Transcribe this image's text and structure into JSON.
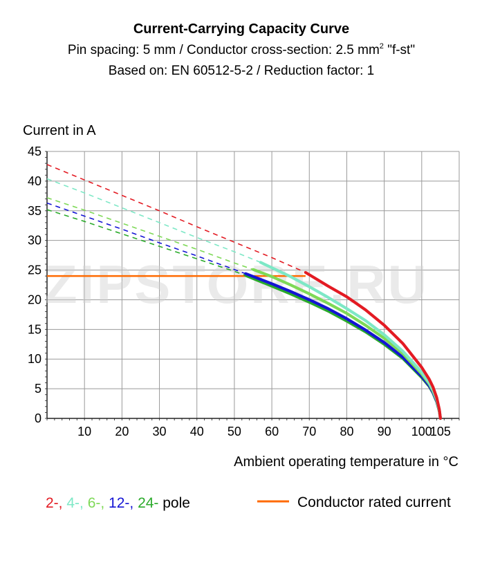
{
  "chart_data": {
    "type": "line",
    "title": "Current-Carrying Capacity Curve",
    "subtitle_lines": [
      "Pin spacing: 5 mm / Conductor cross-section: 2.5 mm",
      "Based on: EN 60512-5-2 / Reduction factor: 1"
    ],
    "subtitle_superscript": "2",
    "subtitle_suffix": " \"f-st\"",
    "ylabel": "Current in A",
    "xlabel": "Ambient operating temperature in °C",
    "xlim": [
      0,
      110
    ],
    "ylim": [
      0,
      45
    ],
    "x_ticks": [
      10,
      20,
      30,
      40,
      50,
      60,
      70,
      80,
      90,
      100,
      105
    ],
    "x_tick_labels": [
      "10",
      "20",
      "30",
      "40",
      "50",
      "60",
      "70",
      "80",
      "90",
      "100",
      "105"
    ],
    "y_ticks": [
      0,
      5,
      10,
      15,
      20,
      25,
      30,
      35,
      40,
      45
    ],
    "y_tick_labels": [
      "0",
      "5",
      "10",
      "15",
      "20",
      "25",
      "30",
      "35",
      "40",
      "45"
    ],
    "series": [
      {
        "name": "2-",
        "color": "#e31b23",
        "dashed": [
          [
            0,
            42.8
          ],
          [
            10,
            40.2
          ],
          [
            20,
            37.6
          ],
          [
            30,
            35.0
          ],
          [
            40,
            32.3
          ],
          [
            50,
            29.7
          ],
          [
            60,
            27.1
          ],
          [
            69,
            24.6
          ]
        ],
        "solid": [
          [
            69,
            24.6
          ],
          [
            75,
            22.3
          ],
          [
            80,
            20.5
          ],
          [
            85,
            18.3
          ],
          [
            90,
            15.7
          ],
          [
            95,
            12.6
          ],
          [
            100,
            8.6
          ],
          [
            102,
            6.6
          ],
          [
            103,
            5.3
          ],
          [
            104,
            3.5
          ],
          [
            104.7,
            1.5
          ],
          [
            105,
            0
          ]
        ]
      },
      {
        "name": "4-",
        "color": "#7de8c6",
        "dashed": [
          [
            0,
            40.4
          ],
          [
            10,
            38.0
          ],
          [
            20,
            35.5
          ],
          [
            30,
            33.0
          ],
          [
            40,
            30.5
          ],
          [
            50,
            28.1
          ],
          [
            57,
            26.3
          ]
        ],
        "solid": [
          [
            57,
            26.3
          ],
          [
            65,
            23.9
          ],
          [
            70,
            22.2
          ],
          [
            75,
            20.4
          ],
          [
            80,
            18.5
          ],
          [
            85,
            16.5
          ],
          [
            90,
            14.1
          ],
          [
            95,
            11.3
          ],
          [
            100,
            7.8
          ],
          [
            102,
            6.0
          ],
          [
            103,
            4.8
          ],
          [
            104,
            3.2
          ],
          [
            104.7,
            1.4
          ],
          [
            105,
            0
          ]
        ]
      },
      {
        "name": "6-",
        "color": "#7ed957",
        "dashed": [
          [
            0,
            37.2
          ],
          [
            10,
            35.1
          ],
          [
            20,
            32.9
          ],
          [
            30,
            30.7
          ],
          [
            40,
            28.5
          ],
          [
            50,
            26.2
          ],
          [
            55,
            25.1
          ]
        ],
        "solid": [
          [
            55,
            25.1
          ],
          [
            60,
            23.9
          ],
          [
            65,
            22.5
          ],
          [
            70,
            21.0
          ],
          [
            75,
            19.4
          ],
          [
            80,
            17.7
          ],
          [
            85,
            15.7
          ],
          [
            90,
            13.5
          ],
          [
            95,
            10.9
          ],
          [
            100,
            7.5
          ],
          [
            102,
            5.8
          ],
          [
            103,
            4.6
          ],
          [
            104,
            3.1
          ],
          [
            104.7,
            1.3
          ],
          [
            105,
            0
          ]
        ]
      },
      {
        "name": "12-",
        "color": "#1414d4",
        "dashed": [
          [
            0,
            36.3
          ],
          [
            10,
            34.1
          ],
          [
            20,
            31.9
          ],
          [
            30,
            29.6
          ],
          [
            40,
            27.4
          ],
          [
            50,
            25.1
          ],
          [
            53,
            24.4
          ]
        ],
        "solid": [
          [
            53,
            24.4
          ],
          [
            60,
            22.7
          ],
          [
            65,
            21.4
          ],
          [
            70,
            20.0
          ],
          [
            75,
            18.5
          ],
          [
            80,
            16.8
          ],
          [
            85,
            14.9
          ],
          [
            90,
            12.8
          ],
          [
            95,
            10.3
          ],
          [
            100,
            7.1
          ],
          [
            102,
            5.5
          ],
          [
            103,
            4.4
          ],
          [
            104,
            2.9
          ],
          [
            104.7,
            1.3
          ],
          [
            105,
            0
          ]
        ]
      },
      {
        "name": "24-",
        "color": "#2aaa2a",
        "dashed": [
          [
            0,
            35.2
          ],
          [
            10,
            33.2
          ],
          [
            20,
            31.1
          ],
          [
            30,
            29.0
          ],
          [
            40,
            26.9
          ],
          [
            50,
            24.8
          ],
          [
            53,
            24.1
          ]
        ],
        "solid": [
          [
            53,
            24.1
          ],
          [
            60,
            22.3
          ],
          [
            65,
            21.0
          ],
          [
            70,
            19.6
          ],
          [
            75,
            18.1
          ],
          [
            80,
            16.4
          ],
          [
            85,
            14.6
          ],
          [
            90,
            12.5
          ],
          [
            95,
            10.1
          ],
          [
            100,
            6.9
          ],
          [
            102,
            5.4
          ],
          [
            103,
            4.3
          ],
          [
            104,
            2.8
          ],
          [
            104.7,
            1.2
          ],
          [
            105,
            0
          ]
        ]
      }
    ],
    "rated_current": {
      "name": "Conductor rated current",
      "value": 24,
      "x_range": [
        0,
        69
      ],
      "color": "#ff6a00"
    },
    "legend": {
      "pole_items": [
        {
          "label": "2-",
          "color": "#e31b23"
        },
        {
          "label": "4-",
          "color": "#7de8c6"
        },
        {
          "label": "6-",
          "color": "#7ed957"
        },
        {
          "label": "12-",
          "color": "#1414d4"
        },
        {
          "label": "24-",
          "color": "#2aaa2a"
        }
      ],
      "pole_suffix": "pole",
      "rated_label": "Conductor rated current"
    },
    "grid": true
  },
  "watermark": "ZIPSTORE.RU"
}
